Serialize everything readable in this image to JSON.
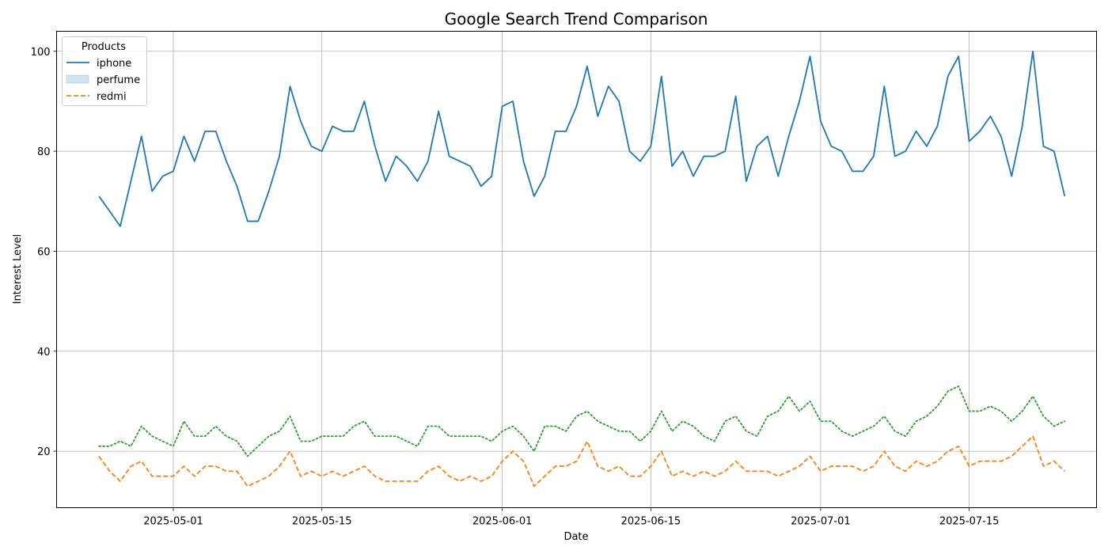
{
  "chart_data": {
    "type": "line",
    "title": "Google Search Trend Comparison",
    "xlabel": "Date",
    "ylabel": "Interest Level",
    "x_start": "2025-04-24",
    "x_range": [
      "2025-04-20",
      "2025-07-27"
    ],
    "xticks": [
      "2025-05-01",
      "2025-05-15",
      "2025-06-01",
      "2025-06-15",
      "2025-07-01",
      "2025-07-15"
    ],
    "ylim": [
      8.7,
      104
    ],
    "yticks": [
      20,
      40,
      60,
      80,
      100
    ],
    "grid": true,
    "legend": {
      "title": "Products",
      "placement": "top-left",
      "entries": [
        {
          "label": "iphone",
          "marker": "solid-line",
          "color": "#1f77b4"
        },
        {
          "label": "perfume",
          "marker": "patch",
          "color": "#1f77b4"
        },
        {
          "label": "redmi",
          "marker": "dashed-line",
          "color": "#ff7f0e"
        }
      ]
    },
    "series": [
      {
        "name": "iphone",
        "color": "#1f77b4",
        "style": "solid",
        "values": [
          71,
          68,
          65,
          74,
          83,
          72,
          75,
          76,
          83,
          78,
          84,
          84,
          78,
          73,
          66,
          66,
          72,
          79,
          93,
          86,
          81,
          80,
          85,
          84,
          84,
          90,
          81,
          74,
          79,
          77,
          74,
          78,
          88,
          79,
          78,
          77,
          73,
          75,
          89,
          90,
          78,
          71,
          75,
          84,
          84,
          89,
          97,
          87,
          93,
          90,
          80,
          78,
          81,
          95,
          77,
          80,
          75,
          79,
          79,
          80,
          91,
          74,
          81,
          83,
          75,
          83,
          90,
          99,
          86,
          81,
          80,
          76,
          76,
          79,
          93,
          79,
          80,
          84,
          81,
          85,
          95,
          99,
          82,
          84,
          87,
          83,
          75,
          85,
          100,
          81,
          80,
          71
        ]
      },
      {
        "name": "",
        "color": "#2ca02c",
        "style": "dotted",
        "values": [
          21,
          21,
          22,
          21,
          25,
          23,
          22,
          21,
          26,
          23,
          23,
          25,
          23,
          22,
          19,
          21,
          23,
          24,
          27,
          22,
          22,
          23,
          23,
          23,
          25,
          26,
          23,
          23,
          23,
          22,
          21,
          25,
          25,
          23,
          23,
          23,
          23,
          22,
          24,
          25,
          23,
          20,
          25,
          25,
          24,
          27,
          28,
          26,
          25,
          24,
          24,
          22,
          24,
          28,
          24,
          26,
          25,
          23,
          22,
          26,
          27,
          24,
          23,
          27,
          28,
          31,
          28,
          30,
          26,
          26,
          24,
          23,
          24,
          25,
          27,
          24,
          23,
          26,
          27,
          29,
          32,
          33,
          28,
          28,
          29,
          28,
          26,
          28,
          31,
          27,
          25,
          26
        ]
      },
      {
        "name": "redmi",
        "color": "#ff7f0e",
        "style": "dashed",
        "values": [
          19,
          16,
          14,
          17,
          18,
          15,
          15,
          15,
          17,
          15,
          17,
          17,
          16,
          16,
          13,
          14,
          15,
          17,
          20,
          15,
          16,
          15,
          16,
          15,
          16,
          17,
          15,
          14,
          14,
          14,
          14,
          16,
          17,
          15,
          14,
          15,
          14,
          15,
          18,
          20,
          18,
          13,
          15,
          17,
          17,
          18,
          22,
          17,
          16,
          17,
          15,
          15,
          17,
          20,
          15,
          16,
          15,
          16,
          15,
          16,
          18,
          16,
          16,
          16,
          15,
          16,
          17,
          19,
          16,
          17,
          17,
          17,
          16,
          17,
          20,
          17,
          16,
          18,
          17,
          18,
          20,
          21,
          17,
          18,
          18,
          18,
          19,
          21,
          23,
          17,
          18,
          16
        ]
      }
    ]
  }
}
